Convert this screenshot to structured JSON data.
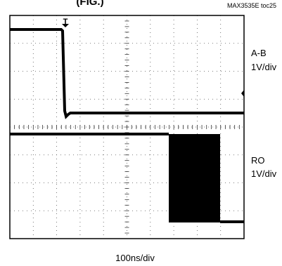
{
  "header": {
    "title": "(FIG.)",
    "figure_id": "MAX3535E toc25"
  },
  "traces": [
    {
      "name": "A-B",
      "scale": "1V/div"
    },
    {
      "name": "RO",
      "scale": "1V/div"
    }
  ],
  "marker": "T",
  "timebase": "100ns/div"
}
